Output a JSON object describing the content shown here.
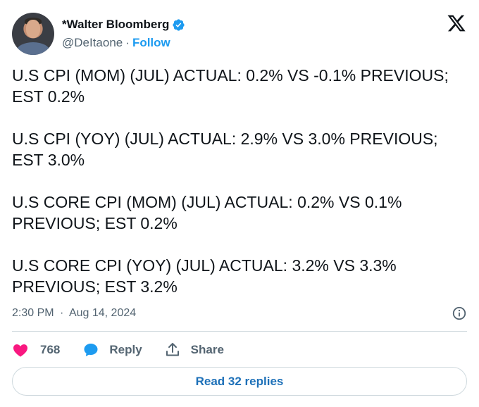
{
  "author": {
    "name": "*Walter Bloomberg",
    "handle": "@DeItaone",
    "separator": "·",
    "follow_label": "Follow"
  },
  "tweet": {
    "paragraphs": [
      "U.S CPI (MOM) (JUL) ACTUAL:  0.2% VS -0.1% PREVIOUS; EST 0.2%",
      "U.S CPI (YOY) (JUL) ACTUAL:  2.9% VS 3.0% PREVIOUS; EST 3.0%",
      "U.S CORE CPI (MOM) (JUL) ACTUAL:  0.2% VS 0.1% PREVIOUS; EST 0.2%",
      "U.S CORE CPI (YOY) (JUL) ACTUAL:  3.2% VS 3.3% PREVIOUS; EST 3.2%"
    ],
    "time": "2:30 PM",
    "date_separator": "·",
    "date": "Aug 14, 2024"
  },
  "actions": {
    "like_count": "768",
    "reply_label": "Reply",
    "share_label": "Share"
  },
  "read_replies_label": "Read 32 replies",
  "colors": {
    "accent": "#1d9bf0",
    "like": "#f91880",
    "text": "#0f1419",
    "muted": "#536471",
    "border": "#cfd9de"
  },
  "icons": {
    "verified": "verified-badge-icon",
    "logo": "x-logo-icon",
    "info": "info-icon",
    "like": "heart-icon",
    "reply": "speech-bubble-icon",
    "share": "share-upload-icon"
  }
}
